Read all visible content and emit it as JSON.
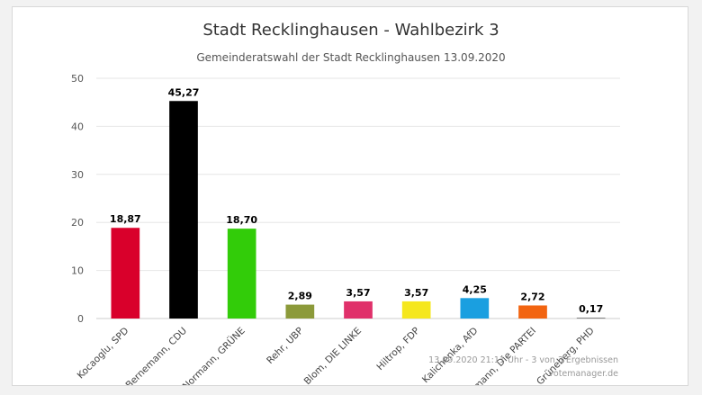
{
  "chart_data": {
    "type": "bar",
    "title": "Stadt Recklinghausen - Wahlbezirk 3",
    "subtitle": "Gemeinderatswahl der Stadt Recklinghausen 13.09.2020",
    "categories": [
      "Kocaoglu, SPD",
      "Bernemann, CDU",
      "Normann, GRÜNE",
      "Rehr, UBP",
      "Blom, DIE LINKE",
      "Hiltrop, FDP",
      "Kalichenka, AfD",
      "Lohmann, Die PARTEI",
      "Grüneberg, PHD"
    ],
    "values": [
      18.87,
      45.27,
      18.7,
      2.89,
      3.57,
      3.57,
      4.25,
      2.72,
      0.17
    ],
    "value_labels": [
      "18,87",
      "45,27",
      "18,70",
      "2,89",
      "3,57",
      "3,57",
      "4,25",
      "2,72",
      "0,17"
    ],
    "colors": [
      "#d9002b",
      "#000000",
      "#32cc09",
      "#8c9a3a",
      "#e0306a",
      "#f5e71e",
      "#1a9fe0",
      "#f26410",
      "#777777"
    ],
    "ylim": [
      0,
      50
    ],
    "yticks": [
      0,
      10,
      20,
      30,
      40,
      50
    ],
    "grid": true,
    "xlabel": "",
    "ylabel": "",
    "credits": {
      "status": "13.09.2020 21:11 Uhr - 3 von 3 Ergebnissen",
      "source": "votemanager.de"
    }
  }
}
